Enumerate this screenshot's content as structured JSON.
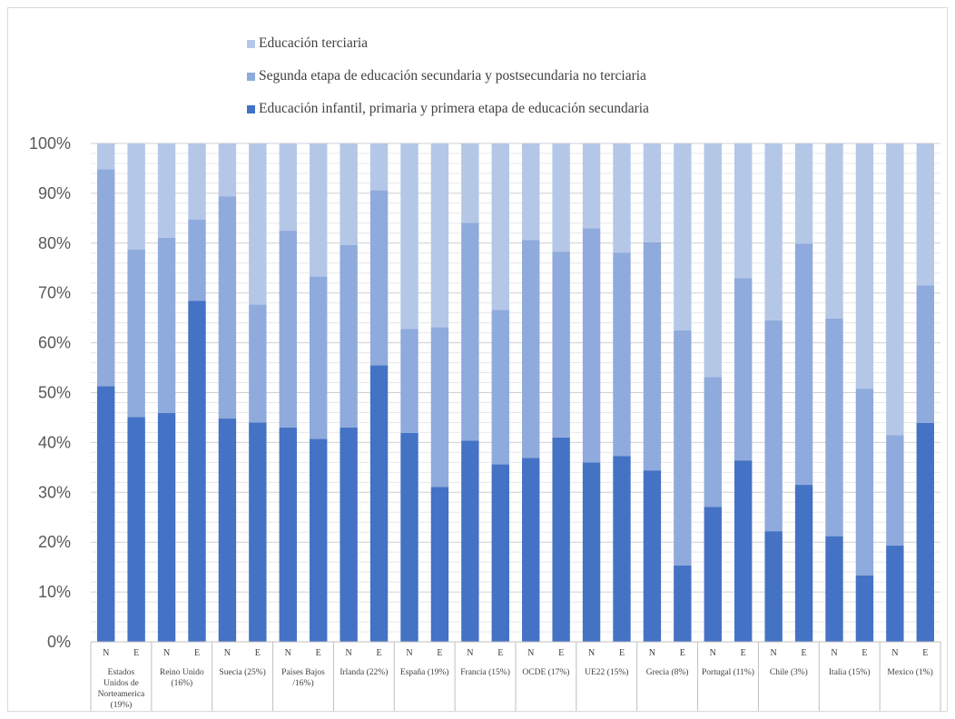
{
  "legend": {
    "items": [
      {
        "label": "Educación terciaria",
        "color": "#b4c7e7"
      },
      {
        "label": "Segunda etapa de educación secundaria y postsecundaria no terciaria",
        "color": "#8faadc"
      },
      {
        "label": "Educación infantil, primaria y primera etapa de educación secundaria",
        "color": "#4472c4"
      }
    ]
  },
  "chart_data": {
    "type": "bar",
    "stacked": true,
    "percent_stacked": true,
    "ylim": [
      0,
      100
    ],
    "y_ticks": [
      "0%",
      "10%",
      "20%",
      "30%",
      "40%",
      "50%",
      "60%",
      "70%",
      "80%",
      "90%",
      "100%"
    ],
    "grid": true,
    "legend_position": "top",
    "groups": [
      {
        "label": [
          "Estados",
          "Unidos de",
          "Norteamerica",
          "(19%)"
        ],
        "subs": [
          "N",
          "E"
        ]
      },
      {
        "label": [
          "Reino Unido",
          "(16%)"
        ],
        "subs": [
          "N",
          "E"
        ]
      },
      {
        "label": [
          "Suecia (25%)"
        ],
        "subs": [
          "N",
          "E"
        ]
      },
      {
        "label": [
          "Países Bajos",
          "/16%)"
        ],
        "subs": [
          "N",
          "E"
        ]
      },
      {
        "label": [
          "Irlanda (22%)"
        ],
        "subs": [
          "N",
          "E"
        ]
      },
      {
        "label": [
          "España (19%)"
        ],
        "subs": [
          "N",
          "E"
        ]
      },
      {
        "label": [
          "Francia (15%)"
        ],
        "subs": [
          "N",
          "E"
        ]
      },
      {
        "label": [
          "OCDE (17%)"
        ],
        "subs": [
          "N",
          "E"
        ]
      },
      {
        "label": [
          "UE22 (15%)"
        ],
        "subs": [
          "N",
          "E"
        ]
      },
      {
        "label": [
          "Grecia (8%)"
        ],
        "subs": [
          "N",
          "E"
        ]
      },
      {
        "label": [
          "Portugal (11%)"
        ],
        "subs": [
          "N",
          "E"
        ]
      },
      {
        "label": [
          "Chile (3%)"
        ],
        "subs": [
          "N",
          "E"
        ]
      },
      {
        "label": [
          "Italia (15%)"
        ],
        "subs": [
          "N",
          "E"
        ]
      },
      {
        "label": [
          "Mexico (1%)"
        ],
        "subs": [
          "N",
          "E"
        ]
      }
    ],
    "series": [
      {
        "name": "Educación infantil, primaria y primera etapa de educación secundaria",
        "color": "#4472c4",
        "values": [
          51.3,
          45.1,
          45.9,
          68.4,
          44.8,
          44.0,
          43.0,
          40.7,
          43.0,
          55.5,
          41.9,
          31.1,
          40.4,
          35.6,
          36.9,
          41.0,
          36.0,
          37.3,
          34.4,
          15.3,
          27.1,
          36.4,
          22.2,
          31.5,
          21.2,
          13.3,
          19.3,
          43.9
        ]
      },
      {
        "name": "Segunda etapa de educación secundaria y postsecundaria no terciaria",
        "color": "#8faadc",
        "values": [
          43.5,
          33.6,
          35.2,
          16.3,
          44.6,
          23.7,
          39.5,
          32.6,
          36.6,
          35.1,
          20.9,
          32.0,
          43.7,
          31.0,
          43.7,
          37.3,
          47.0,
          40.8,
          45.8,
          47.2,
          26.0,
          36.6,
          42.3,
          48.4,
          43.7,
          37.5,
          22.2,
          27.6
        ]
      },
      {
        "name": "Educación terciaria",
        "color": "#b4c7e7",
        "values": [
          5.2,
          21.3,
          18.9,
          15.3,
          10.6,
          32.3,
          17.5,
          26.7,
          20.4,
          9.4,
          37.2,
          36.9,
          15.9,
          33.4,
          19.4,
          21.7,
          17.0,
          21.9,
          19.8,
          37.5,
          46.9,
          27.0,
          35.5,
          20.1,
          35.1,
          49.2,
          58.5,
          28.5
        ]
      }
    ]
  }
}
